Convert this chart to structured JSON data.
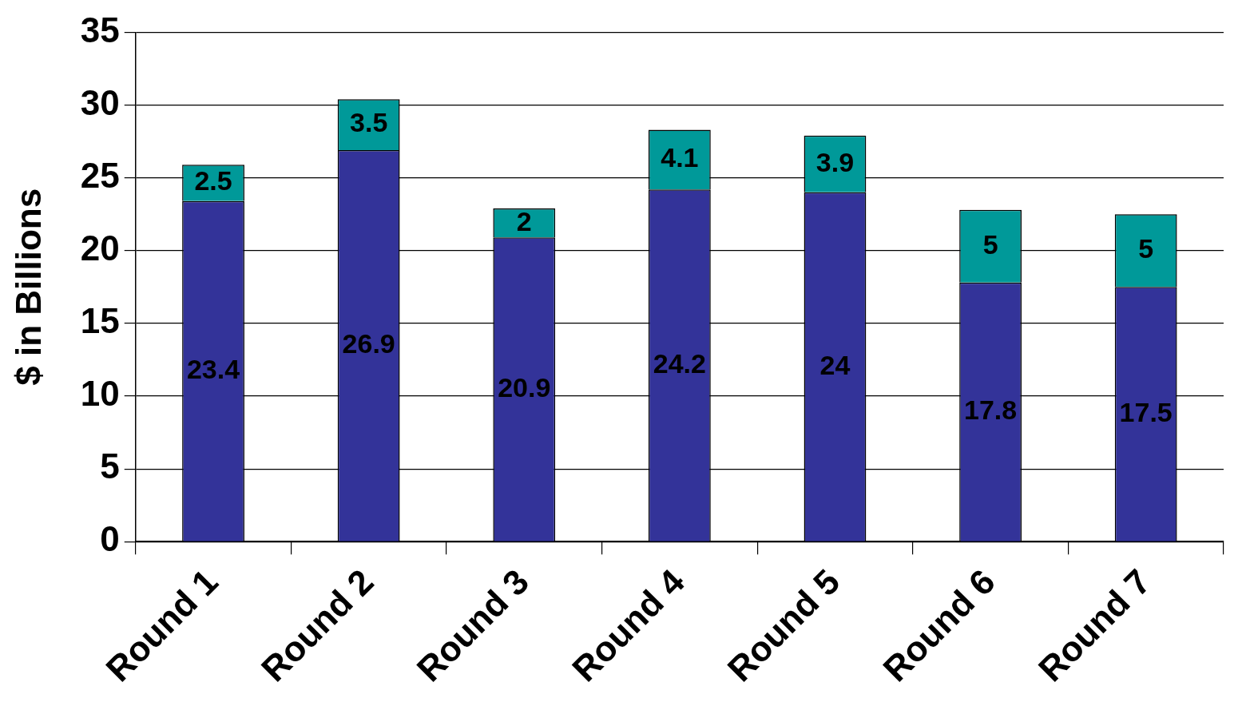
{
  "chart_data": {
    "type": "bar",
    "ylabel": "$ in Billions",
    "categories": [
      "Round 1",
      "Round 2",
      "Round 3",
      "Round 4",
      "Round 5",
      "Round 6",
      "Round 7"
    ],
    "series": [
      {
        "color": "#333399",
        "values": [
          23.4,
          26.9,
          20.9,
          24.2,
          24,
          17.8,
          17.5
        ]
      },
      {
        "color": "#009999",
        "values": [
          2.5,
          3.5,
          2,
          4.1,
          3.9,
          5,
          5
        ]
      }
    ],
    "stacked": true,
    "ylim": [
      0,
      35
    ],
    "yticks": [
      0,
      5,
      10,
      15,
      20,
      25,
      30,
      35
    ],
    "grid": "y",
    "legend": false,
    "data_labels": true
  }
}
